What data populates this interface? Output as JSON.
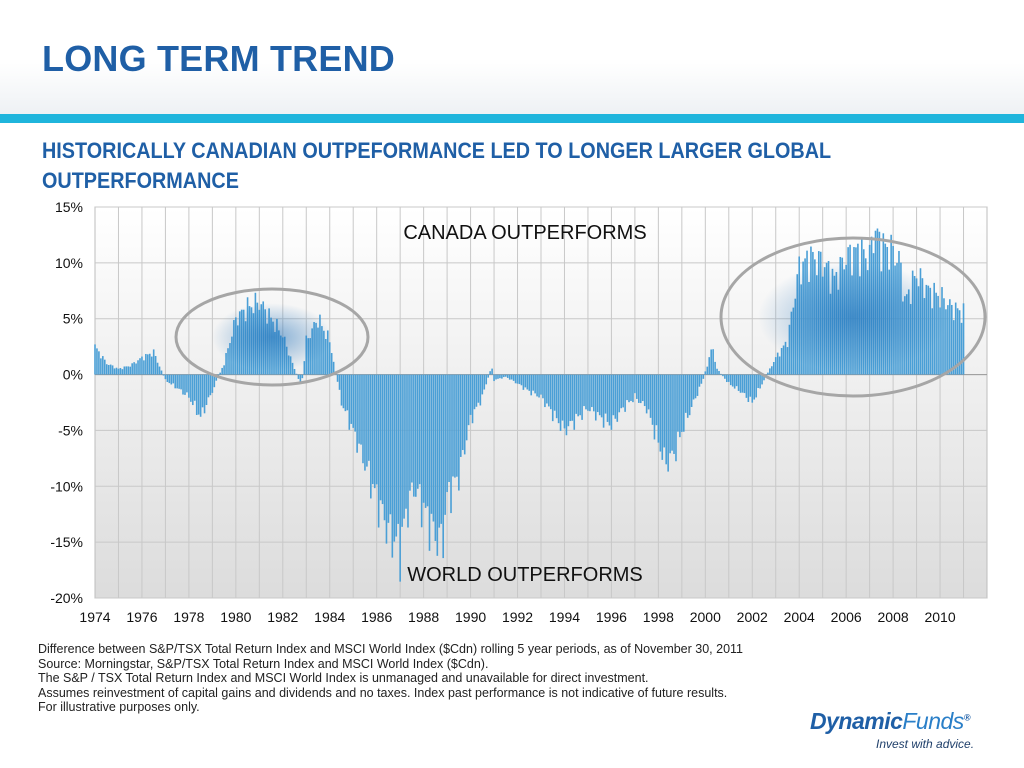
{
  "header": {
    "title": "LONG TERM TREND",
    "subtitle": "HISTORICALLY CANADIAN OUTPEFORMANCE LED TO LONGER LARGER GLOBAL OUTPERFORMANCE"
  },
  "colors": {
    "title": "#1f5fa6",
    "rule": "#1fb5dc",
    "bars": "#4a9fd6",
    "bars_highlight": "#1f6fb8",
    "ellipse": "#a6a6a6",
    "grid": "#c8c8c8"
  },
  "chart_data": {
    "type": "bar",
    "title": "",
    "xlabel": "",
    "ylabel": "",
    "ylim": [
      -20,
      15
    ],
    "xlim": [
      1974,
      2012
    ],
    "grid": true,
    "y_tick_labels": [
      "15%",
      "10%",
      "5%",
      "0%",
      "-5%",
      "-10%",
      "-15%",
      "-20%"
    ],
    "x_tick_labels": [
      "1974",
      "1976",
      "1978",
      "1980",
      "1982",
      "1984",
      "1986",
      "1988",
      "1990",
      "1992",
      "1994",
      "1996",
      "1998",
      "2000",
      "2002",
      "2004",
      "2006",
      "2008",
      "2010"
    ],
    "annotations": {
      "top": "CANADA OUTPERFORMS",
      "bottom": "WORLD OUTPERFORMS"
    },
    "series": [
      {
        "values_by_year": [
          [
            1974.0,
            2.5
          ],
          [
            1974.5,
            1.0
          ],
          [
            1975.0,
            0.5
          ],
          [
            1975.5,
            0.8
          ],
          [
            1976.0,
            1.5
          ],
          [
            1976.5,
            2.0
          ],
          [
            1977.0,
            -0.5
          ],
          [
            1977.5,
            -1.2
          ],
          [
            1978.0,
            -2.0
          ],
          [
            1978.5,
            -3.8
          ],
          [
            1979.0,
            -1.5
          ],
          [
            1979.5,
            1.0
          ],
          [
            1980.0,
            5.0
          ],
          [
            1980.5,
            6.0
          ],
          [
            1981.0,
            6.5
          ],
          [
            1981.5,
            5.0
          ],
          [
            1982.0,
            3.5
          ],
          [
            1982.5,
            0.5
          ],
          [
            1982.8,
            -1.0
          ],
          [
            1983.0,
            3.0
          ],
          [
            1983.5,
            5.0
          ],
          [
            1984.0,
            3.0
          ],
          [
            1984.5,
            -2.5
          ],
          [
            1985.0,
            -5.0
          ],
          [
            1985.5,
            -8.0
          ],
          [
            1986.0,
            -11.0
          ],
          [
            1986.5,
            -14.0
          ],
          [
            1987.0,
            -15.5
          ],
          [
            1987.3,
            -12.0
          ],
          [
            1987.6,
            -10.0
          ],
          [
            1988.0,
            -12.0
          ],
          [
            1988.5,
            -14.5
          ],
          [
            1988.8,
            -15.0
          ],
          [
            1989.0,
            -11.0
          ],
          [
            1989.5,
            -9.0
          ],
          [
            1989.8,
            -6.0
          ],
          [
            1990.0,
            -4.0
          ],
          [
            1990.5,
            -2.0
          ],
          [
            1990.9,
            0.8
          ],
          [
            1991.0,
            -0.5
          ],
          [
            1991.5,
            -0.2
          ],
          [
            1992.0,
            -0.8
          ],
          [
            1992.5,
            -1.5
          ],
          [
            1993.0,
            -2.0
          ],
          [
            1993.5,
            -3.5
          ],
          [
            1994.0,
            -5.0
          ],
          [
            1994.5,
            -4.0
          ],
          [
            1995.0,
            -3.0
          ],
          [
            1995.5,
            -3.8
          ],
          [
            1996.0,
            -4.5
          ],
          [
            1996.5,
            -3.0
          ],
          [
            1997.0,
            -2.0
          ],
          [
            1997.5,
            -3.0
          ],
          [
            1998.0,
            -6.0
          ],
          [
            1998.3,
            -8.0
          ],
          [
            1998.7,
            -7.0
          ],
          [
            1999.0,
            -5.0
          ],
          [
            1999.5,
            -2.5
          ],
          [
            1999.9,
            -0.5
          ],
          [
            2000.3,
            2.5
          ],
          [
            2000.5,
            0.5
          ],
          [
            2001.0,
            -0.8
          ],
          [
            2001.5,
            -1.5
          ],
          [
            2002.0,
            -2.5
          ],
          [
            2002.5,
            -0.5
          ],
          [
            2003.0,
            1.5
          ],
          [
            2003.5,
            3.0
          ],
          [
            2003.8,
            7.0
          ],
          [
            2004.0,
            9.5
          ],
          [
            2004.5,
            10.5
          ],
          [
            2005.0,
            10.0
          ],
          [
            2005.5,
            8.5
          ],
          [
            2006.0,
            10.5
          ],
          [
            2006.5,
            11.0
          ],
          [
            2007.0,
            10.5
          ],
          [
            2007.2,
            13.0
          ],
          [
            2007.5,
            11.5
          ],
          [
            2008.0,
            11.0
          ],
          [
            2008.3,
            10.0
          ],
          [
            2008.5,
            6.5
          ],
          [
            2009.0,
            9.0
          ],
          [
            2009.5,
            7.5
          ],
          [
            2010.0,
            7.0
          ],
          [
            2010.5,
            6.0
          ],
          [
            2011.0,
            5.5
          ]
        ]
      }
    ]
  },
  "footnotes": {
    "line1": "Difference between S&P/TSX Total Return Index and MSCI World Index ($Cdn) rolling 5 year periods, as of November 30, 2011",
    "line2": "Source:  Morningstar, S&P/TSX Total Return Index and MSCI World Index ($Cdn).",
    "line3": "The S&P / TSX Total Return Index and MSCI World Index is unmanaged and unavailable for direct investment.",
    "line4": "Assumes reinvestment of capital gains and dividends and no taxes. Index past performance is not indicative of future results.",
    "line5": "For illustrative purposes only."
  },
  "logo": {
    "brand_bold": "Dynamic",
    "brand_light": "Funds",
    "reg": "®",
    "tagline": "Invest with advice."
  }
}
